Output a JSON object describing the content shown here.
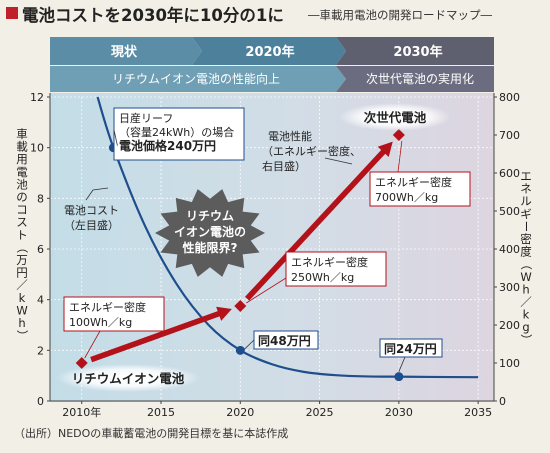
{
  "title": "電池コストを2030年に10分の1に",
  "subtitle": "―車載用電池の開発ロードマップ―",
  "source": "（出所）NEDOの車載蓄電池の開発目標を基に本誌作成",
  "colors": {
    "period_band": "#5b8ea6",
    "period_band_future": "#5c5c6e",
    "cost_line": "#1f4e8c",
    "energy_arrow": "#b3121b",
    "background_left": "#c5dde6",
    "background_right": "#dcd6e0"
  },
  "header": {
    "periods": [
      "現状",
      "2020年",
      "2030年"
    ],
    "phases": [
      "リチウムイオン電池の性能向上",
      "次世代電池の実用化"
    ]
  },
  "chart_data": {
    "type": "line",
    "x": [
      2010,
      2015,
      2020,
      2025,
      2030,
      2035
    ],
    "xlim": [
      2008,
      2036
    ],
    "xtick_labels": [
      "2010年",
      "2015",
      "2020",
      "2025",
      "2030",
      "2035"
    ],
    "ylabel_left": "車載用電池のコスト（万円／kWh）",
    "ylim_left": [
      0,
      12
    ],
    "yticks_left": [
      0,
      2,
      4,
      6,
      8,
      10,
      12
    ],
    "ylabel_right": "エネルギー密度（Wh／kg）",
    "ylim_right": [
      0,
      800
    ],
    "yticks_right": [
      0,
      100,
      200,
      300,
      400,
      500,
      600,
      700,
      800
    ],
    "series": [
      {
        "label": "電池コスト（左目盛）",
        "axis": "left",
        "curve": [
          [
            2011,
            12
          ],
          [
            2012,
            10.0
          ],
          [
            2014,
            6.9
          ],
          [
            2016,
            4.6
          ],
          [
            2018,
            3.0
          ],
          [
            2020,
            2.0
          ],
          [
            2022,
            1.45
          ],
          [
            2024,
            1.15
          ],
          [
            2026,
            1.02
          ],
          [
            2028,
            0.97
          ],
          [
            2030,
            0.96
          ],
          [
            2032,
            0.95
          ],
          [
            2035,
            0.94
          ]
        ],
        "markers": [
          [
            2012,
            10.0
          ],
          [
            2020,
            2.0
          ],
          [
            2030,
            0.96
          ]
        ]
      },
      {
        "label": "電池性能（エネルギー密度、右目盛）",
        "axis": "right",
        "points": [
          [
            2010,
            100
          ],
          [
            2020,
            250
          ],
          [
            2030,
            700
          ]
        ]
      }
    ],
    "annotations": {
      "leaf": [
        "日産リーフ",
        "（容量24kWh）の場合",
        "電池価格240万円"
      ],
      "cost_2020": "同48万円",
      "cost_2030": "同24万円",
      "cost_legend": [
        "電池コスト",
        "（左目盛）"
      ],
      "perf_legend": [
        "電池性能",
        "（エネルギー密度、",
        "右目盛）"
      ],
      "burst": [
        "リチウム",
        "イオン電池の",
        "性能限界?"
      ],
      "energy_2010": [
        "エネルギー密度",
        "100Wh／kg"
      ],
      "energy_2020": [
        "エネルギー密度",
        "250Wh／kg"
      ],
      "energy_2030": [
        "エネルギー密度",
        "700Wh／kg"
      ],
      "battery_li": "リチウムイオン電池",
      "battery_next": "次世代電池"
    }
  }
}
